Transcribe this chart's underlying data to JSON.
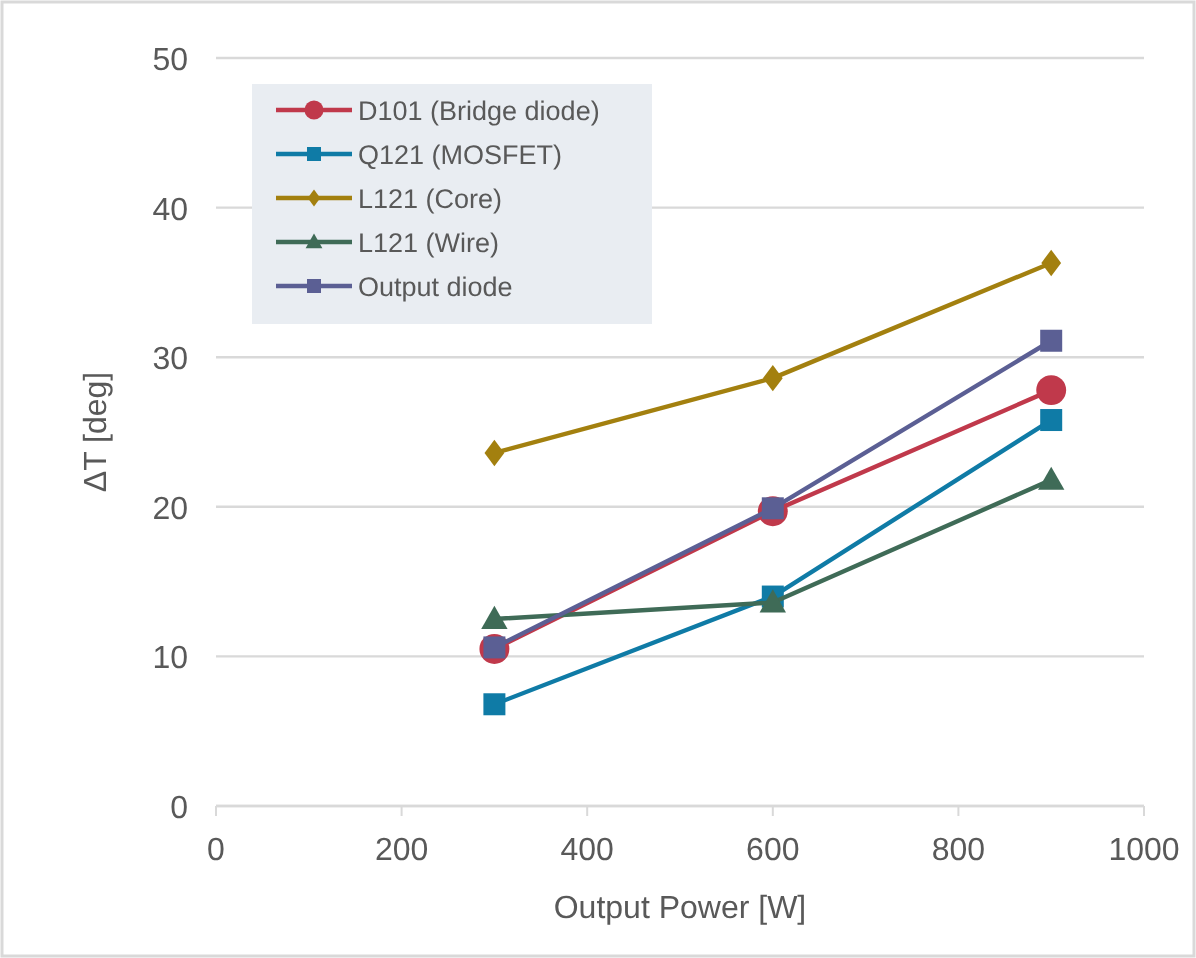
{
  "chart_data": {
    "type": "line",
    "xlabel": "Output Power [W]",
    "ylabel": "ΔT [deg]",
    "x": [
      300,
      600,
      900
    ],
    "xlim": [
      0,
      1000
    ],
    "xticks": [
      0,
      200,
      400,
      600,
      800,
      1000
    ],
    "ylim": [
      0,
      50
    ],
    "yticks": [
      0,
      10,
      20,
      30,
      40,
      50
    ],
    "grid": "y",
    "legend": "top left",
    "series": [
      {
        "name": "D101 (Bridge diode)",
        "color": "#c0394b",
        "marker": "circle",
        "values": [
          10.5,
          19.7,
          27.8
        ]
      },
      {
        "name": "Q121 (MOSFET)",
        "color": "#0f7ba6",
        "marker": "square",
        "values": [
          6.8,
          14.0,
          25.8
        ]
      },
      {
        "name": "L121 (Core)",
        "color": "#a3800f",
        "marker": "diamond",
        "values": [
          23.6,
          28.6,
          36.3
        ]
      },
      {
        "name": "L121 (Wire)",
        "color": "#3f6b57",
        "marker": "triangle",
        "values": [
          12.5,
          13.6,
          21.8
        ]
      },
      {
        "name": "Output diode",
        "color": "#5b5f94",
        "marker": "square",
        "values": [
          10.6,
          19.9,
          31.1
        ]
      }
    ]
  }
}
